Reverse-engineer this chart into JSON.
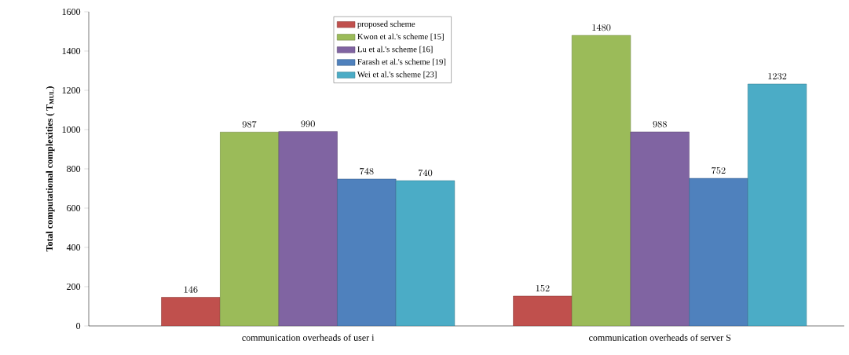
{
  "chart_data": {
    "type": "bar",
    "ylabel": "Total computational complexities ( T$_{MUL}$)",
    "categories": [
      "communication overheads of user i",
      "communication overheads of server S"
    ],
    "series": [
      {
        "name": "proposed scheme",
        "color": "#c0504d",
        "values": [
          146,
          152
        ]
      },
      {
        "name": "Kwon et al.'s scheme [15]",
        "color": "#9bbb59",
        "values": [
          987,
          1480
        ]
      },
      {
        "name": "Lu et al.'s scheme [16]",
        "color": "#8064a2",
        "values": [
          990,
          988
        ]
      },
      {
        "name": "Farash  et al.'s scheme [19]",
        "color": "#4f81bd",
        "values": [
          748,
          752
        ]
      },
      {
        "name": "Wei  et al.'s scheme [23]",
        "color": "#4bacc6",
        "values": [
          740,
          1232
        ]
      }
    ],
    "ylim": [
      0,
      1600
    ],
    "yticks": [
      0,
      200,
      400,
      600,
      800,
      1000,
      1200,
      1400,
      1600
    ],
    "data_labels": true,
    "legend": "top",
    "grid": false
  }
}
